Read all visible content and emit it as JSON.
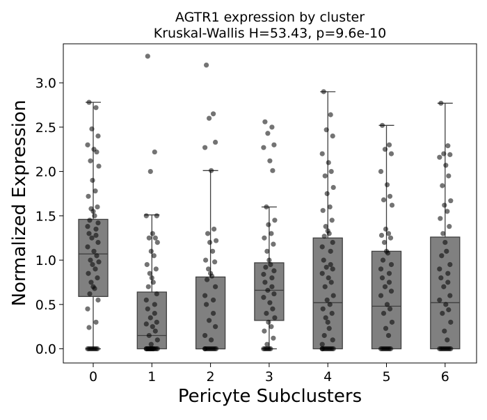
{
  "chart_data": {
    "type": "box",
    "title": "AGTR1 expression by cluster",
    "subtitle": "Kruskal-Wallis H=53.43, p=9.6e-10",
    "xlabel": "Pericyte Subclusters",
    "ylabel": "Normalized Expression",
    "categories": [
      "0",
      "1",
      "2",
      "3",
      "4",
      "5",
      "6"
    ],
    "ylim": [
      -0.16,
      3.44
    ],
    "yticks": [
      0.0,
      0.5,
      1.0,
      1.5,
      2.0,
      2.5,
      3.0
    ],
    "ytick_labels": [
      "0.0",
      "0.5",
      "1.0",
      "1.5",
      "2.0",
      "2.5",
      "3.0"
    ],
    "grid": false,
    "box_color": "#808080",
    "point_color": "#000000",
    "boxes": [
      {
        "category": "0",
        "whisker_low": 0.0,
        "q1": 0.59,
        "median": 1.07,
        "q3": 1.46,
        "whisker_high": 2.78
      },
      {
        "category": "1",
        "whisker_low": 0.0,
        "q1": 0.0,
        "median": 0.15,
        "q3": 0.64,
        "whisker_high": 1.51
      },
      {
        "category": "2",
        "whisker_low": 0.0,
        "q1": 0.0,
        "median": 0.0,
        "q3": 0.81,
        "whisker_high": 2.01
      },
      {
        "category": "3",
        "whisker_low": 0.0,
        "q1": 0.32,
        "median": 0.66,
        "q3": 0.97,
        "whisker_high": 1.6
      },
      {
        "category": "4",
        "whisker_low": 0.0,
        "q1": 0.0,
        "median": 0.52,
        "q3": 1.25,
        "whisker_high": 2.9
      },
      {
        "category": "5",
        "whisker_low": 0.0,
        "q1": 0.0,
        "median": 0.48,
        "q3": 1.1,
        "whisker_high": 2.52
      },
      {
        "category": "6",
        "whisker_low": 0.0,
        "q1": 0.0,
        "median": 0.52,
        "q3": 1.26,
        "whisker_high": 2.77
      }
    ],
    "points": [
      {
        "category": "0",
        "values": [
          2.78,
          2.72,
          2.48,
          2.4,
          2.3,
          2.25,
          2.22,
          2.12,
          2.06,
          1.9,
          1.78,
          1.72,
          1.6,
          1.58,
          1.55,
          1.5,
          1.45,
          1.42,
          1.38,
          1.35,
          1.3,
          1.28,
          1.25,
          1.2,
          1.15,
          1.1,
          1.05,
          1.0,
          0.98,
          0.95,
          0.9,
          0.85,
          0.8,
          0.75,
          0.7,
          0.68,
          0.62,
          0.55,
          0.45,
          0.3,
          0.24,
          0.0,
          0.0,
          0.0,
          0.0,
          0.0,
          0.0,
          0.0,
          0.0
        ]
      },
      {
        "category": "1",
        "values": [
          3.3,
          2.22,
          2.0,
          1.5,
          1.5,
          1.3,
          1.25,
          1.25,
          1.2,
          1.1,
          1.05,
          0.95,
          0.9,
          0.85,
          0.8,
          0.75,
          0.7,
          0.62,
          0.55,
          0.5,
          0.45,
          0.4,
          0.35,
          0.3,
          0.28,
          0.25,
          0.2,
          0.15,
          0.1,
          0.05,
          0.0,
          0.0,
          0.0,
          0.0,
          0.0,
          0.0,
          0.0,
          0.0,
          0.0,
          0.0,
          0.0,
          0.0,
          0.0,
          0.0,
          0.0
        ]
      },
      {
        "category": "2",
        "values": [
          3.2,
          2.65,
          2.6,
          2.33,
          2.27,
          2.01,
          1.35,
          1.3,
          1.22,
          1.2,
          1.1,
          1.0,
          0.98,
          0.9,
          0.85,
          0.82,
          0.78,
          0.7,
          0.6,
          0.55,
          0.5,
          0.4,
          0.32,
          0.25,
          0.15,
          0.1,
          0.0,
          0.0,
          0.0,
          0.0,
          0.0,
          0.0,
          0.0,
          0.0,
          0.0,
          0.0
        ]
      },
      {
        "category": "3",
        "values": [
          2.56,
          2.5,
          2.43,
          2.3,
          2.27,
          2.12,
          2.01,
          1.6,
          1.45,
          1.4,
          1.3,
          1.25,
          1.18,
          1.1,
          1.0,
          0.95,
          0.92,
          0.88,
          0.84,
          0.8,
          0.75,
          0.7,
          0.66,
          0.62,
          0.58,
          0.52,
          0.45,
          0.4,
          0.35,
          0.3,
          0.25,
          0.2,
          0.12,
          0.05,
          0.0,
          0.0,
          0.0,
          0.0,
          0.0,
          0.0
        ]
      },
      {
        "category": "4",
        "values": [
          2.9,
          2.64,
          2.47,
          2.4,
          2.2,
          2.1,
          2.0,
          1.95,
          1.82,
          1.75,
          1.6,
          1.56,
          1.45,
          1.38,
          1.33,
          1.3,
          1.27,
          1.2,
          1.15,
          1.1,
          1.0,
          0.95,
          0.92,
          0.9,
          0.85,
          0.8,
          0.75,
          0.7,
          0.6,
          0.55,
          0.5,
          0.45,
          0.4,
          0.35,
          0.3,
          0.23,
          0.15,
          0.1,
          0.05,
          0.0,
          0.0,
          0.0,
          0.0,
          0.0,
          0.0,
          0.0,
          0.0,
          0.0,
          0.0
        ]
      },
      {
        "category": "5",
        "values": [
          2.52,
          2.3,
          2.25,
          2.2,
          2.0,
          1.85,
          1.72,
          1.68,
          1.62,
          1.35,
          1.3,
          1.28,
          1.25,
          1.2,
          1.1,
          1.08,
          1.0,
          0.95,
          0.9,
          0.85,
          0.8,
          0.75,
          0.7,
          0.65,
          0.6,
          0.5,
          0.45,
          0.4,
          0.3,
          0.23,
          0.15,
          0.0,
          0.0,
          0.0,
          0.0,
          0.0,
          0.0,
          0.0,
          0.0
        ]
      },
      {
        "category": "6",
        "values": [
          2.77,
          2.29,
          2.2,
          2.19,
          2.16,
          2.07,
          1.95,
          1.84,
          1.67,
          1.62,
          1.55,
          1.47,
          1.38,
          1.3,
          1.2,
          1.1,
          1.05,
          0.95,
          0.9,
          0.85,
          0.8,
          0.75,
          0.7,
          0.6,
          0.55,
          0.5,
          0.44,
          0.4,
          0.3,
          0.2,
          0.1,
          0.0,
          0.0,
          0.0,
          0.0,
          0.0,
          0.0,
          0.0,
          0.0,
          0.0
        ]
      }
    ]
  }
}
